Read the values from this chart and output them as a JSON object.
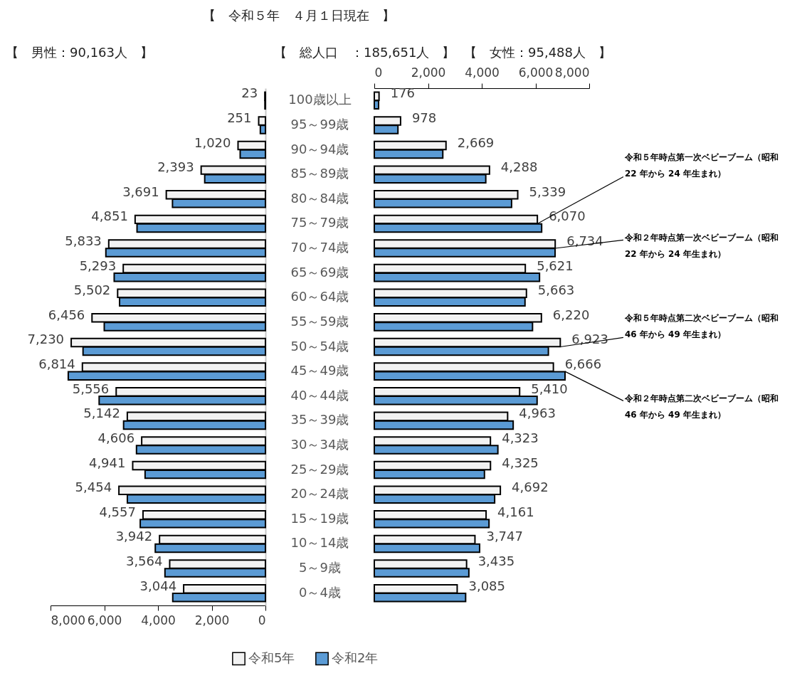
{
  "chart_data": [
    {
      "type": "bar",
      "orientation": "horizontal",
      "title": "【　男性：90,163人　】",
      "annotations": [
        "【　令和５年　４月１日現在　】",
        "【　総人口　：185,651人　】"
      ],
      "categories": [
        "100歳以上",
        "95～99歳",
        "90～94歳",
        "85～89歳",
        "80～84歳",
        "75～79歳",
        "70～74歳",
        "65～69歳",
        "60～64歳",
        "55～59歳",
        "50～54歳",
        "45～49歳",
        "40～44歳",
        "35～39歳",
        "30～34歳",
        "25～29歳",
        "20～24歳",
        "15～19歳",
        "10～14歳",
        "5～9歳",
        "0～4歳"
      ],
      "xlim": [
        8000,
        0
      ],
      "xticks": [
        {
          "value": 8000,
          "label": "8,000"
        },
        {
          "value": 6000,
          "label": "6,000"
        },
        {
          "value": 4000,
          "label": "4,000"
        },
        {
          "value": 2000,
          "label": "2,000"
        },
        0
      ],
      "series": [
        {
          "name": "令和5年",
          "color": "#f2f2f2",
          "values": [
            23,
            251,
            1020,
            2393,
            3691,
            4851,
            5833,
            5293,
            5502,
            6456,
            7230,
            6814,
            5556,
            5142,
            4606,
            4941,
            5454,
            4557,
            3942,
            3564,
            3044
          ],
          "value_labels": [
            "23",
            "251",
            "1,020",
            "2,393",
            "3,691",
            "4,851",
            "5,833",
            "5,293",
            "5,502",
            "6,456",
            "7,230",
            "6,814",
            "5,556",
            "5,142",
            "4,606",
            "4,941",
            "5,454",
            "4,557",
            "3,942",
            "3,564",
            "3,044"
          ]
        },
        {
          "name": "令和2年",
          "color": "#5b9bd5",
          "values": [
            20,
            190,
            940,
            2260,
            3460,
            4780,
            5940,
            5630,
            5430,
            6000,
            6790,
            7340,
            6190,
            5280,
            4800,
            4480,
            5140,
            4660,
            4100,
            3740,
            3450
          ]
        }
      ],
      "legend": "bottom"
    },
    {
      "type": "bar",
      "orientation": "horizontal",
      "title": "【　女性：95,488人　】",
      "annotations": [
        {
          "text": "令和５年時点第一次ベビーブーム（昭和 22 年から 24 年生まれ）",
          "x": 6070,
          "y": "75～79歳"
        },
        {
          "text": "令和２年時点第一次ベビーブーム（昭和 22 年から 24 年生まれ）",
          "x": 6730,
          "y": "70～74歳"
        },
        {
          "text": "令和５年時点第二次ベビーブーム（昭和 46 年から 49 年生まれ）",
          "x": 6923,
          "y": "50～54歳"
        },
        {
          "text": "令和２年時点第二次ベビーブーム（昭和 46 年から 49 年生まれ）",
          "x": 7100,
          "y": "45～49歳"
        }
      ],
      "categories": [
        "100歳以上",
        "95～99歳",
        "90～94歳",
        "85～89歳",
        "80～84歳",
        "75～79歳",
        "70～74歳",
        "65～69歳",
        "60～64歳",
        "55～59歳",
        "50～54歳",
        "45～49歳",
        "40～44歳",
        "35～39歳",
        "30～34歳",
        "25～29歳",
        "20～24歳",
        "15～19歳",
        "10～14歳",
        "5～9歳",
        "0～4歳"
      ],
      "xlim": [
        0,
        8000
      ],
      "xticks": [
        0,
        {
          "value": 2000,
          "label": "2,000"
        },
        {
          "value": 4000,
          "label": "4,000"
        },
        {
          "value": 6000,
          "label": "6,000"
        },
        {
          "value": 8000,
          "label": "8,000"
        }
      ],
      "tick_labels": "x",
      "series": [
        {
          "color": "#f2f2f2",
          "values": [
            176,
            978,
            2669,
            4288,
            5339,
            6070,
            6734,
            5621,
            5663,
            6220,
            6923,
            6666,
            5410,
            4963,
            4323,
            4325,
            4692,
            4161,
            3747,
            3435,
            3085
          ],
          "value_labels": [
            "176",
            "978",
            "2,669",
            "4,288",
            "5,339",
            "6,070",
            "6,734",
            "5,621",
            "5,663",
            "6,220",
            "6,923",
            "6,666",
            "5,410",
            "4,963",
            "4,323",
            "4,325",
            "4,692",
            "4,161",
            "3,747",
            "3,435",
            "3,085"
          ]
        },
        {
          "color": "#5b9bd5",
          "values": [
            160,
            880,
            2550,
            4150,
            5110,
            6230,
            6730,
            6150,
            5610,
            5890,
            6480,
            7100,
            6060,
            5170,
            4600,
            4100,
            4480,
            4270,
            3920,
            3520,
            3400
          ]
        }
      ],
      "legend": false
    }
  ]
}
